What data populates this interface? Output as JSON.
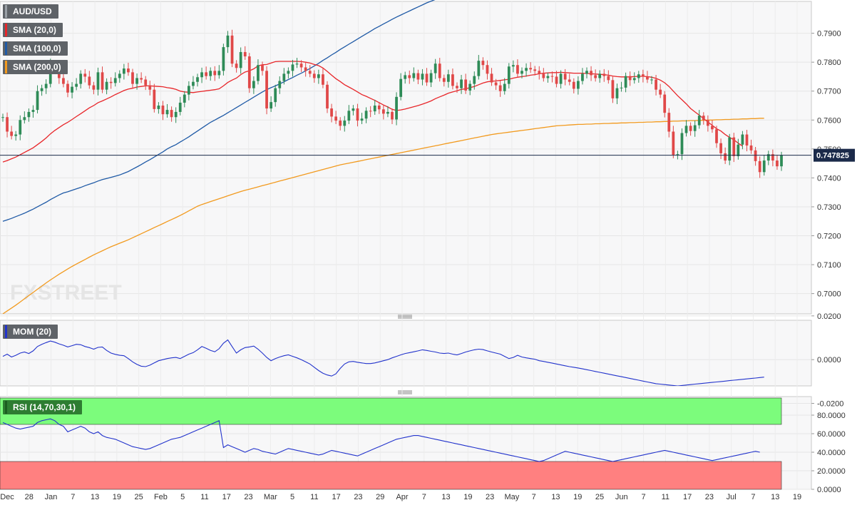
{
  "chart_data": {
    "type": "candlestick",
    "symbol": "AUD/USD",
    "current_price": "0.747825",
    "watermark": "FXSTREET",
    "legend": {
      "symbol": "AUD/USD",
      "sma20": "SMA (20,0)",
      "sma100": "SMA (100,0)",
      "sma200": "SMA (200,0)",
      "mom": "MOM (20)",
      "rsi": "RSI (14,70,30,1)"
    },
    "colors": {
      "up": "#2e8b57",
      "down": "#e04848",
      "sma20": "#e8262a",
      "sma100": "#1f5aa6",
      "sma200": "#f29a1e",
      "mom": "#2233cc",
      "rsi": "#2233cc",
      "rsi_overbought": "#7cfc7c",
      "rsi_oversold": "#ff8080"
    },
    "x_ticks": [
      "Dec",
      "28",
      "Jan",
      "7",
      "13",
      "19",
      "25",
      "Feb",
      "5",
      "11",
      "17",
      "23",
      "Mar",
      "5",
      "11",
      "17",
      "23",
      "29",
      "Apr",
      "7",
      "13",
      "19",
      "23",
      "May",
      "7",
      "13",
      "19",
      "25",
      "Jun",
      "7",
      "11",
      "17",
      "23",
      "Jul",
      "7",
      "13",
      "19"
    ],
    "price_axis": {
      "ylim": [
        0.693,
        0.801
      ],
      "ticks": [
        "0.7000",
        "0.7100",
        "0.7200",
        "0.7300",
        "0.7400",
        "0.7500",
        "0.7600",
        "0.7700",
        "0.7800",
        "0.7900"
      ]
    },
    "mom_axis": {
      "ylim": [
        -0.012,
        0.018
      ],
      "ticks": [
        "0.0200",
        "0.0000",
        "-0.0200"
      ]
    },
    "rsi_axis": {
      "ylim": [
        0,
        100
      ],
      "ticks": [
        "80.0000",
        "60.0000",
        "40.0000",
        "20.0000",
        "0.0000"
      ],
      "overbought": 70,
      "oversold": 30
    },
    "close": [
      0.761,
      0.756,
      0.7545,
      0.755,
      0.76,
      0.761,
      0.7628,
      0.7635,
      0.77,
      0.771,
      0.7725,
      0.7792,
      0.7775,
      0.7745,
      0.7725,
      0.7695,
      0.7715,
      0.7725,
      0.776,
      0.775,
      0.772,
      0.7705,
      0.7765,
      0.7705,
      0.7732,
      0.7728,
      0.7745,
      0.776,
      0.7778,
      0.7765,
      0.7725,
      0.7745,
      0.774,
      0.772,
      0.7705,
      0.7638,
      0.765,
      0.762,
      0.7635,
      0.761,
      0.7628,
      0.766,
      0.7688,
      0.7718,
      0.7732,
      0.7748,
      0.7765,
      0.7752,
      0.777,
      0.7755,
      0.777,
      0.7852,
      0.7892,
      0.7795,
      0.778,
      0.7835,
      0.782,
      0.771,
      0.7735,
      0.779,
      0.777,
      0.764,
      0.7662,
      0.771,
      0.7735,
      0.776,
      0.777,
      0.7792,
      0.7795,
      0.7782,
      0.777,
      0.776,
      0.7745,
      0.7758,
      0.7722,
      0.764,
      0.7612,
      0.7598,
      0.758,
      0.7598,
      0.7632,
      0.764,
      0.7598,
      0.7605,
      0.7632,
      0.763,
      0.765,
      0.7637,
      0.7622,
      0.7628,
      0.7602,
      0.768,
      0.7742,
      0.7755,
      0.7745,
      0.7762,
      0.774,
      0.776,
      0.773,
      0.7762,
      0.7795,
      0.7745,
      0.7732,
      0.7758,
      0.7718,
      0.771,
      0.774,
      0.7702,
      0.7725,
      0.7752,
      0.7805,
      0.779,
      0.776,
      0.773,
      0.772,
      0.77,
      0.7725,
      0.7785,
      0.779,
      0.776,
      0.777,
      0.778,
      0.7775,
      0.777,
      0.776,
      0.7745,
      0.7752,
      0.775,
      0.7725,
      0.776,
      0.774,
      0.7732,
      0.7708,
      0.7735,
      0.776,
      0.777,
      0.7755,
      0.7745,
      0.776,
      0.7752,
      0.7738,
      0.7675,
      0.771,
      0.7712,
      0.7752,
      0.7738,
      0.7745,
      0.7758,
      0.775,
      0.774,
      0.774,
      0.7705,
      0.7688,
      0.7625,
      0.756,
      0.748,
      0.7482,
      0.7555,
      0.758,
      0.7562,
      0.7582,
      0.7615,
      0.76,
      0.758,
      0.7568,
      0.752,
      0.7485,
      0.746,
      0.754,
      0.7475,
      0.7515,
      0.755,
      0.7512,
      0.7495,
      0.7458,
      0.742,
      0.746,
      0.7482,
      0.746,
      0.744,
      0.7478
    ],
    "sma20": [
      0.7455,
      0.746,
      0.7466,
      0.7472,
      0.748,
      0.7488,
      0.7496,
      0.7504,
      0.7515,
      0.7526,
      0.7538,
      0.7552,
      0.7564,
      0.7574,
      0.7584,
      0.7592,
      0.7602,
      0.7612,
      0.7622,
      0.7632,
      0.7642,
      0.765,
      0.766,
      0.7666,
      0.7673,
      0.768,
      0.7688,
      0.7695,
      0.7702,
      0.7707,
      0.771,
      0.7714,
      0.7716,
      0.7718,
      0.7718,
      0.7717,
      0.7716,
      0.7715,
      0.7712,
      0.771,
      0.7706,
      0.77,
      0.7697,
      0.7696,
      0.7695,
      0.7697,
      0.7699,
      0.7701,
      0.7703,
      0.7705,
      0.7708,
      0.7718,
      0.773,
      0.7738,
      0.7745,
      0.7757,
      0.7766,
      0.777,
      0.7777,
      0.7787,
      0.7791,
      0.7792,
      0.7797,
      0.7802,
      0.7803,
      0.7803,
      0.7803,
      0.7803,
      0.7803,
      0.7802,
      0.78,
      0.7797,
      0.7792,
      0.7788,
      0.778,
      0.7768,
      0.7755,
      0.7743,
      0.7733,
      0.7722,
      0.7714,
      0.7706,
      0.7697,
      0.7688,
      0.7682,
      0.7675,
      0.7668,
      0.766,
      0.7652,
      0.7645,
      0.7637,
      0.7633,
      0.7635,
      0.7638,
      0.7642,
      0.7646,
      0.765,
      0.7655,
      0.766,
      0.7666,
      0.7674,
      0.768,
      0.7686,
      0.7693,
      0.7697,
      0.7701,
      0.7706,
      0.7708,
      0.7712,
      0.7716,
      0.7722,
      0.7728,
      0.7732,
      0.7734,
      0.7735,
      0.7737,
      0.7739,
      0.7741,
      0.7745,
      0.7748,
      0.775,
      0.7752,
      0.7755,
      0.7757,
      0.776,
      0.7762,
      0.7763,
      0.7764,
      0.7764,
      0.7765,
      0.7764,
      0.7763,
      0.7762,
      0.7762,
      0.7762,
      0.7761,
      0.776,
      0.7759,
      0.7758,
      0.7757,
      0.7755,
      0.7752,
      0.775,
      0.7749,
      0.7749,
      0.7749,
      0.775,
      0.7751,
      0.7751,
      0.775,
      0.7748,
      0.7744,
      0.7738,
      0.7729,
      0.7716,
      0.77,
      0.7684,
      0.767,
      0.7656,
      0.764,
      0.7628,
      0.7617,
      0.7605,
      0.7593,
      0.7582,
      0.757,
      0.7562,
      0.755,
      0.754,
      0.7532,
      0.752,
      0.751
    ],
    "sma100": [
      0.725,
      0.7255,
      0.726,
      0.7266,
      0.7272,
      0.7278,
      0.7285,
      0.7292,
      0.73,
      0.7308,
      0.7316,
      0.7325,
      0.7333,
      0.7341,
      0.7348,
      0.7352,
      0.7357,
      0.7362,
      0.7367,
      0.7373,
      0.7378,
      0.7383,
      0.7389,
      0.7394,
      0.7398,
      0.7402,
      0.7406,
      0.741,
      0.7416,
      0.7422,
      0.743,
      0.7438,
      0.7446,
      0.7455,
      0.7463,
      0.7472,
      0.7481,
      0.749,
      0.75,
      0.7508,
      0.7515,
      0.7524,
      0.7533,
      0.7542,
      0.7552,
      0.7562,
      0.7572,
      0.7582,
      0.7592,
      0.76,
      0.7608,
      0.7616,
      0.7625,
      0.7634,
      0.7643,
      0.7652,
      0.7661,
      0.767,
      0.7679,
      0.7688,
      0.7697,
      0.7705,
      0.7712,
      0.7718,
      0.7725,
      0.7732,
      0.774,
      0.7747,
      0.7755,
      0.7762,
      0.777,
      0.7778,
      0.7787,
      0.7796,
      0.7806,
      0.7815,
      0.7825,
      0.7834,
      0.7844,
      0.7853,
      0.7862,
      0.7871,
      0.788,
      0.7889,
      0.7898,
      0.7907,
      0.7916,
      0.7924,
      0.7932,
      0.794,
      0.7948,
      0.7956,
      0.7963,
      0.797,
      0.7977,
      0.7984,
      0.7991,
      0.7998,
      0.8005,
      0.8011,
      0.8017,
      0.8023,
      0.8029,
      0.8035,
      0.804,
      0.8045,
      0.805,
      0.8055,
      0.806,
      0.8065,
      0.807,
      0.8075,
      0.808,
      0.8085,
      0.809,
      0.8095,
      0.81,
      0.8104,
      0.8108,
      0.8112,
      0.8116,
      0.812,
      0.8124,
      0.8128,
      0.8131,
      0.8134,
      0.8137,
      0.814,
      0.8143,
      0.8145,
      0.8148,
      0.815,
      0.8152,
      0.8154,
      0.8156,
      0.8158,
      0.816,
      0.8162,
      0.8164,
      0.8165,
      0.8166,
      0.8167,
      0.8168,
      0.8169,
      0.817,
      0.8171,
      0.8172,
      0.8173,
      0.8174,
      0.8175,
      0.8175,
      0.8176,
      0.8176,
      0.8177,
      0.8177,
      0.8178,
      0.8178,
      0.8179,
      0.8179,
      0.818,
      0.818,
      0.818,
      0.8181,
      0.8181,
      0.8181,
      0.8182,
      0.8182,
      0.8182,
      0.8182,
      0.8182,
      0.8182,
      0.8182,
      0.8182,
      0.8182,
      0.8182,
      0.8182
    ],
    "sma200": [
      0.693,
      0.694,
      0.695,
      0.696,
      0.6971,
      0.6982,
      0.6993,
      0.7004,
      0.7015,
      0.7026,
      0.7037,
      0.7047,
      0.7057,
      0.7067,
      0.7076,
      0.7085,
      0.7094,
      0.7102,
      0.711,
      0.7118,
      0.7126,
      0.7134,
      0.7141,
      0.7148,
      0.7155,
      0.7162,
      0.7168,
      0.7174,
      0.718,
      0.7186,
      0.7193,
      0.72,
      0.7207,
      0.7214,
      0.7221,
      0.7228,
      0.7235,
      0.7242,
      0.7249,
      0.7256,
      0.7263,
      0.727,
      0.7278,
      0.7286,
      0.7294,
      0.7302,
      0.7308,
      0.7313,
      0.7318,
      0.7323,
      0.7328,
      0.7333,
      0.7338,
      0.7343,
      0.7348,
      0.7353,
      0.7357,
      0.7361,
      0.7365,
      0.7369,
      0.7373,
      0.7377,
      0.7381,
      0.7385,
      0.7389,
      0.7393,
      0.7397,
      0.7401,
      0.7405,
      0.7409,
      0.7413,
      0.7417,
      0.7421,
      0.7425,
      0.7429,
      0.7433,
      0.7437,
      0.7441,
      0.7445,
      0.7448,
      0.7451,
      0.7454,
      0.7457,
      0.746,
      0.7463,
      0.7466,
      0.7469,
      0.7472,
      0.7475,
      0.7478,
      0.7481,
      0.7484,
      0.7487,
      0.749,
      0.7493,
      0.7496,
      0.7499,
      0.7502,
      0.7505,
      0.7508,
      0.7511,
      0.7514,
      0.7517,
      0.752,
      0.7523,
      0.7526,
      0.7529,
      0.7532,
      0.7535,
      0.7538,
      0.7541,
      0.7544,
      0.7547,
      0.755,
      0.7552,
      0.7554,
      0.7556,
      0.7558,
      0.756,
      0.7562,
      0.7564,
      0.7566,
      0.7568,
      0.757,
      0.7572,
      0.7574,
      0.7576,
      0.7578,
      0.758,
      0.7581,
      0.7582,
      0.7583,
      0.7584,
      0.7585,
      0.7585,
      0.7586,
      0.7586,
      0.7587,
      0.7587,
      0.7588,
      0.7588,
      0.7589,
      0.7589,
      0.759,
      0.759,
      0.7591,
      0.7591,
      0.7592,
      0.7592,
      0.7593,
      0.7593,
      0.7594,
      0.7594,
      0.7595,
      0.7595,
      0.7596,
      0.7596,
      0.7597,
      0.7597,
      0.7598,
      0.7598,
      0.7599,
      0.7599,
      0.76,
      0.76,
      0.7601,
      0.7601,
      0.7602,
      0.7602,
      0.7603,
      0.7603,
      0.7604,
      0.7604,
      0.7605,
      0.7605,
      0.7606,
      0.7606
    ],
    "mom": [
      0.0015,
      0.0025,
      0.0012,
      0.002,
      0.003,
      0.0035,
      0.0028,
      0.004,
      0.006,
      0.007,
      0.0078,
      0.0085,
      0.008,
      0.0072,
      0.0066,
      0.0058,
      0.0064,
      0.007,
      0.0068,
      0.006,
      0.0055,
      0.0048,
      0.0056,
      0.0058,
      0.0042,
      0.003,
      0.0024,
      0.002,
      0.0018,
      0.0005,
      -0.001,
      -0.0022,
      -0.003,
      -0.0032,
      -0.0025,
      -0.0015,
      -0.0005,
      0.0,
      0.0005,
      0.0008,
      0.001,
      0.0005,
      0.0015,
      0.0025,
      0.0032,
      0.0045,
      0.006,
      0.0052,
      0.0042,
      0.0036,
      0.005,
      0.0075,
      0.009,
      0.006,
      0.003,
      0.0045,
      0.0055,
      0.0058,
      0.0062,
      0.0048,
      0.003,
      0.001,
      -0.0005,
      0.0005,
      0.0012,
      0.0018,
      0.0022,
      0.0015,
      0.0008,
      0.0,
      -0.001,
      -0.002,
      -0.0035,
      -0.005,
      -0.0062,
      -0.007,
      -0.0075,
      -0.0065,
      -0.004,
      -0.002,
      -0.001,
      -0.0008,
      -0.0012,
      -0.0015,
      -0.0018,
      -0.0018,
      -0.0015,
      -0.001,
      -0.0005,
      0.0,
      0.0008,
      0.0015,
      0.0022,
      0.0028,
      0.0032,
      0.0036,
      0.004,
      0.0045,
      0.0042,
      0.0038,
      0.0035,
      0.003,
      0.0028,
      0.003,
      0.0025,
      0.0022,
      0.0028,
      0.0035,
      0.004,
      0.0045,
      0.0048,
      0.0046,
      0.004,
      0.0035,
      0.003,
      0.0025,
      0.0015,
      0.0005,
      0.001,
      0.002,
      0.0012,
      0.0008,
      0.0005,
      0.0002,
      -0.0005,
      -0.0008,
      -0.0012,
      -0.0016,
      -0.002,
      -0.0024,
      -0.0028,
      -0.0032,
      -0.0035,
      -0.0038,
      -0.0042,
      -0.0046,
      -0.005,
      -0.0054,
      -0.0058,
      -0.0062,
      -0.0066,
      -0.007,
      -0.0074,
      -0.0078,
      -0.0082,
      -0.0086,
      -0.009,
      -0.0094,
      -0.0098,
      -0.0102,
      -0.0106,
      -0.011,
      -0.0112,
      -0.0114,
      -0.0116,
      -0.0118,
      -0.012,
      -0.0118,
      -0.0116,
      -0.0114,
      -0.0112,
      -0.011,
      -0.0108,
      -0.0106,
      -0.0104,
      -0.0102,
      -0.01,
      -0.0098,
      -0.0096,
      -0.0094,
      -0.0092,
      -0.009,
      -0.0088,
      -0.0086,
      -0.0084,
      -0.0082,
      -0.008
    ],
    "rsi": [
      72,
      70,
      68,
      66,
      65,
      66,
      67,
      68,
      72,
      74,
      75,
      76,
      74,
      70,
      68,
      62,
      64,
      66,
      68,
      66,
      62,
      60,
      62,
      58,
      56,
      55,
      54,
      52,
      50,
      48,
      46,
      45,
      44,
      43,
      44,
      46,
      48,
      50,
      52,
      54,
      55,
      56,
      58,
      60,
      62,
      64,
      66,
      68,
      70,
      72,
      74,
      45,
      48,
      46,
      44,
      42,
      40,
      42,
      44,
      43,
      41,
      40,
      39,
      38,
      40,
      42,
      44,
      43,
      42,
      41,
      40,
      39,
      38,
      37,
      38,
      40,
      42,
      41,
      40,
      39,
      38,
      37,
      36,
      38,
      40,
      42,
      44,
      46,
      48,
      50,
      52,
      54,
      55,
      56,
      57,
      58,
      58,
      57,
      56,
      55,
      54,
      53,
      52,
      51,
      50,
      49,
      48,
      47,
      46,
      45,
      44,
      43,
      42,
      41,
      40,
      39,
      38,
      37,
      36,
      35,
      34,
      33,
      32,
      31,
      30,
      31,
      33,
      35,
      37,
      39,
      41,
      40,
      39,
      38,
      37,
      36,
      35,
      34,
      33,
      32,
      31,
      30,
      31,
      32,
      33,
      34,
      35,
      36,
      37,
      38,
      39,
      40,
      41,
      42,
      41,
      40,
      39,
      38,
      37,
      36,
      35,
      34,
      33,
      32,
      31,
      32,
      33,
      34,
      35,
      36,
      37,
      38,
      39,
      40,
      41,
      40
    ]
  }
}
